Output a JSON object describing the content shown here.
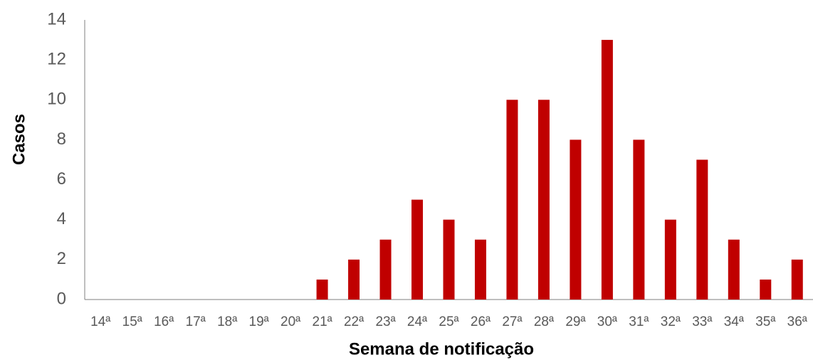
{
  "chart_data": {
    "type": "bar",
    "x_label": "Semana de notificação",
    "y_label": "Casos",
    "categories": [
      "14ª",
      "15ª",
      "16ª",
      "17ª",
      "18ª",
      "19ª",
      "20ª",
      "21ª",
      "22ª",
      "23ª",
      "24ª",
      "25ª",
      "26ª",
      "27ª",
      "28ª",
      "29ª",
      "30ª",
      "31ª",
      "32ª",
      "33ª",
      "34ª",
      "35ª",
      "36ª"
    ],
    "values": [
      0,
      0,
      0,
      0,
      0,
      0,
      0,
      1,
      2,
      3,
      5,
      4,
      3,
      10,
      10,
      8,
      13,
      8,
      4,
      7,
      3,
      1,
      2
    ],
    "color": "#c00000",
    "ylim": [
      0,
      14
    ],
    "yticks": [
      0,
      2,
      4,
      6,
      8,
      10,
      12,
      14
    ],
    "grid": false
  }
}
